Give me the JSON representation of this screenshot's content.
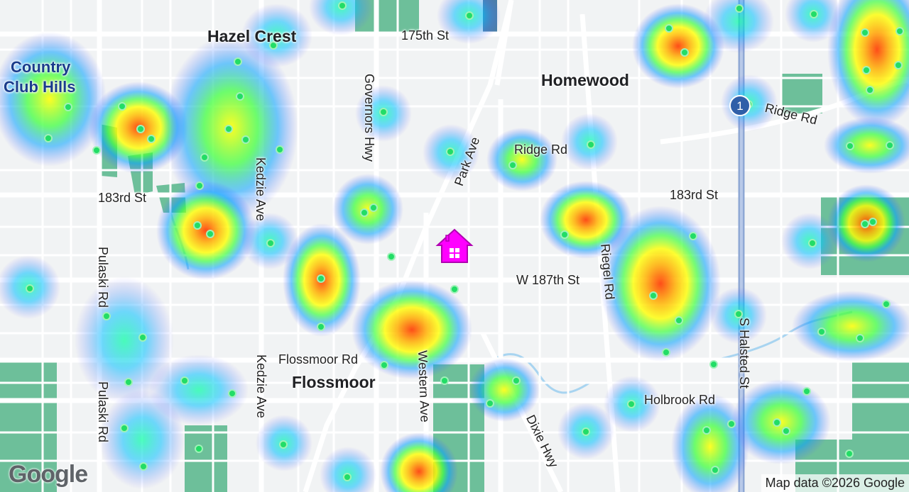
{
  "map": {
    "labels": {
      "hazel_crest": "Hazel Crest",
      "country_club_hills_1": "Country",
      "country_club_hills_2": "Club Hills",
      "homewood": "Homewood",
      "flossmoor": "Flossmoor",
      "st_175": "175th St",
      "st_183_w": "183rd St",
      "st_183_e": "183rd St",
      "ridge_rd_w": "Ridge Rd",
      "ridge_rd_e": "Ridge Rd",
      "w187": "W 187th St",
      "flossmoor_rd": "Flossmoor Rd",
      "holbrook_rd": "Holbrook Rd",
      "governors_hwy": "Governors Hwy",
      "park_ave": "Park Ave",
      "kedzie_n": "Kedzie Ave",
      "kedzie_s": "Kedzie Ave",
      "pulaski_n": "Pulaski Rd",
      "pulaski_s": "Pulaski Rd",
      "riegel_rd": "Riegel Rd",
      "western_ave": "Western Ave",
      "dixie_hwy": "Dixie Hwy",
      "halsted": "S Halsted St",
      "shield_number": "1"
    },
    "logo": "Google",
    "attribution": "Map data ©2026 Google",
    "colors": {
      "park": "#6dbf9a",
      "water": "#a8d4f0",
      "road": "#ffffff",
      "highway": "#8fa8d4",
      "home_pin": "#ff00ff"
    }
  }
}
